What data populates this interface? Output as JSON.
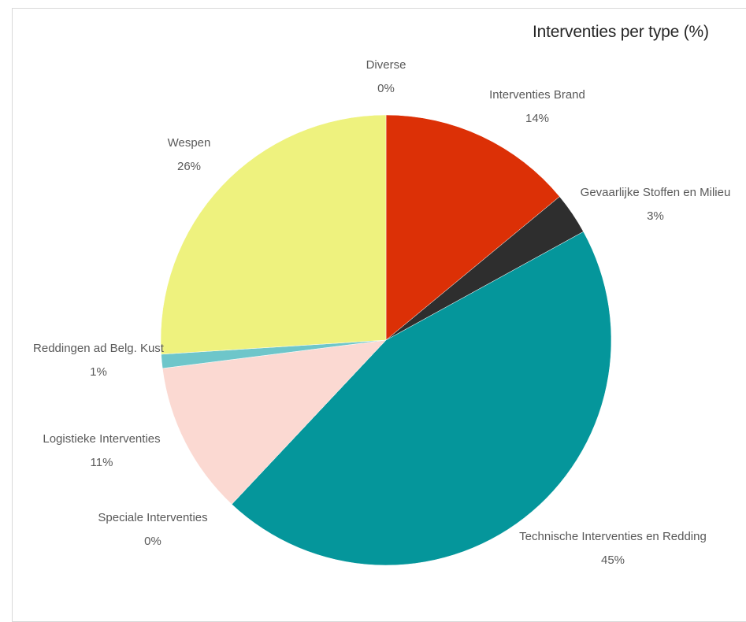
{
  "chart_data": {
    "type": "pie",
    "title": "Interventies per type (%)",
    "start_angle_deg": 0,
    "direction": "clockwise",
    "slices": [
      {
        "name": "Interventies Brand",
        "value": 14,
        "label": "14%",
        "color": "#dc3006"
      },
      {
        "name": "Gevaarlijke Stoffen en Milieu",
        "value": 3,
        "label": "3%",
        "color": "#2e2e2e"
      },
      {
        "name": "Technische Interventies en Redding",
        "value": 45,
        "label": "45%",
        "color": "#05969b"
      },
      {
        "name": "Speciale Interventies",
        "value": 0,
        "label": "0%",
        "color": "#f7f0e0"
      },
      {
        "name": "Logistieke Interventies",
        "value": 11,
        "label": "11%",
        "color": "#fbd9d2"
      },
      {
        "name": "Reddingen ad Belg. Kust",
        "value": 1,
        "label": "1%",
        "color": "#6ec6ca"
      },
      {
        "name": "Wespen",
        "value": 26,
        "label": "26%",
        "color": "#eef27e"
      },
      {
        "name": "Diverse",
        "value": 0,
        "label": "0%",
        "color": "#e8e8e8"
      }
    ]
  }
}
